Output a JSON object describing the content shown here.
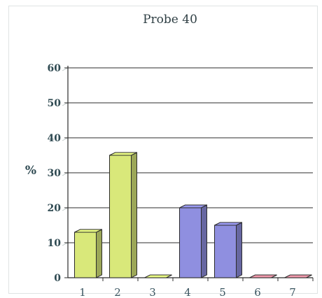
{
  "chart_data": {
    "type": "bar",
    "title": "Probe 40",
    "xlabel": "",
    "ylabel": "%",
    "categories": [
      "1",
      "2",
      "3",
      "4",
      "5",
      "6",
      "7"
    ],
    "values": [
      13,
      35,
      0,
      20,
      15,
      0,
      0
    ],
    "ylim": [
      0,
      60
    ],
    "yticks": [
      0,
      10,
      20,
      30,
      40,
      50,
      60
    ],
    "grid": true,
    "bar_colors": [
      "#d9e87a",
      "#d9e87a",
      "#d9e87a",
      "#8f8fe0",
      "#8f8fe0",
      "#e08fa0",
      "#e08fa0"
    ]
  }
}
